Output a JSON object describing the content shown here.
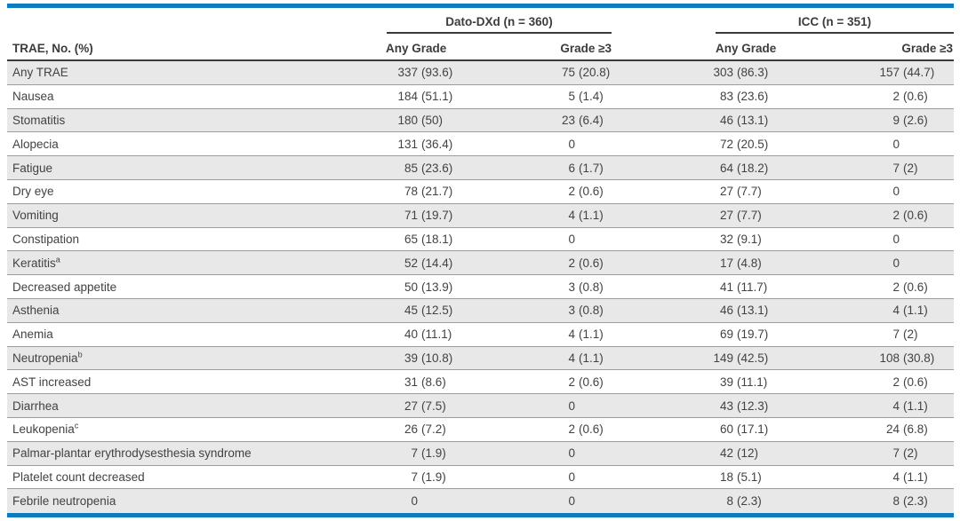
{
  "page": {
    "accent_blue": "#0d7cbf",
    "row_alt_bg": "#e8e8e8",
    "rule_grey": "#9c9c9c",
    "text_color": "#424242"
  },
  "table": {
    "corner_header": "TRAE, No. (%)",
    "groups": [
      {
        "label": "Dato-DXd (n = 360)",
        "columns": [
          "Any Grade",
          "Grade ≥3"
        ]
      },
      {
        "label": "ICC (n = 351)",
        "columns": [
          "Any Grade",
          "Grade ≥3"
        ]
      }
    ],
    "rows": [
      {
        "label": "Any TRAE",
        "sup": "",
        "values": [
          "337 (93.6)",
          "75 (20.8)",
          "303 (86.3)",
          "157 (44.7)"
        ]
      },
      {
        "label": "Nausea",
        "sup": "",
        "values": [
          "184 (51.1)",
          "5 (1.4)",
          "83 (23.6)",
          "2 (0.6)"
        ]
      },
      {
        "label": "Stomatitis",
        "sup": "",
        "values": [
          "180 (50)",
          "23 (6.4)",
          "46 (13.1)",
          "9 (2.6)"
        ]
      },
      {
        "label": "Alopecia",
        "sup": "",
        "values": [
          "131 (36.4)",
          "0",
          "72 (20.5)",
          "0"
        ]
      },
      {
        "label": "Fatigue",
        "sup": "",
        "values": [
          "85 (23.6)",
          "6 (1.7)",
          "64 (18.2)",
          "7 (2)"
        ]
      },
      {
        "label": "Dry eye",
        "sup": "",
        "values": [
          "78 (21.7)",
          "2 (0.6)",
          "27 (7.7)",
          "0"
        ]
      },
      {
        "label": "Vomiting",
        "sup": "",
        "values": [
          "71 (19.7)",
          "4 (1.1)",
          "27 (7.7)",
          "2 (0.6)"
        ]
      },
      {
        "label": "Constipation",
        "sup": "",
        "values": [
          "65 (18.1)",
          "0",
          "32 (9.1)",
          "0"
        ]
      },
      {
        "label": "Keratitis",
        "sup": "a",
        "values": [
          "52 (14.4)",
          "2 (0.6)",
          "17 (4.8)",
          "0"
        ]
      },
      {
        "label": "Decreased appetite",
        "sup": "",
        "values": [
          "50 (13.9)",
          "3 (0.8)",
          "41 (11.7)",
          "2 (0.6)"
        ]
      },
      {
        "label": "Asthenia",
        "sup": "",
        "values": [
          "45 (12.5)",
          "3 (0.8)",
          "46 (13.1)",
          "4 (1.1)"
        ]
      },
      {
        "label": "Anemia",
        "sup": "",
        "values": [
          "40 (11.1)",
          "4 (1.1)",
          "69 (19.7)",
          "7 (2)"
        ]
      },
      {
        "label": "Neutropenia",
        "sup": "b",
        "values": [
          "39 (10.8)",
          "4 (1.1)",
          "149 (42.5)",
          "108 (30.8)"
        ]
      },
      {
        "label": "AST increased",
        "sup": "",
        "values": [
          "31 (8.6)",
          "2 (0.6)",
          "39 (11.1)",
          "2 (0.6)"
        ]
      },
      {
        "label": "Diarrhea",
        "sup": "",
        "values": [
          "27 (7.5)",
          "0",
          "43 (12.3)",
          "4 (1.1)"
        ]
      },
      {
        "label": "Leukopenia",
        "sup": "c",
        "values": [
          "26 (7.2)",
          "2 (0.6)",
          "60 (17.1)",
          "24 (6.8)"
        ]
      },
      {
        "label": "Palmar-plantar erythrodysesthesia syndrome",
        "sup": "",
        "values": [
          "7 (1.9)",
          "0",
          "42 (12)",
          "7 (2)"
        ]
      },
      {
        "label": "Platelet count decreased",
        "sup": "",
        "values": [
          "7 (1.9)",
          "0",
          "18 (5.1)",
          "4 (1.1)"
        ]
      },
      {
        "label": "Febrile neutropenia",
        "sup": "",
        "values": [
          "0",
          "0",
          "8 (2.3)",
          "8 (2.3)"
        ]
      }
    ]
  }
}
